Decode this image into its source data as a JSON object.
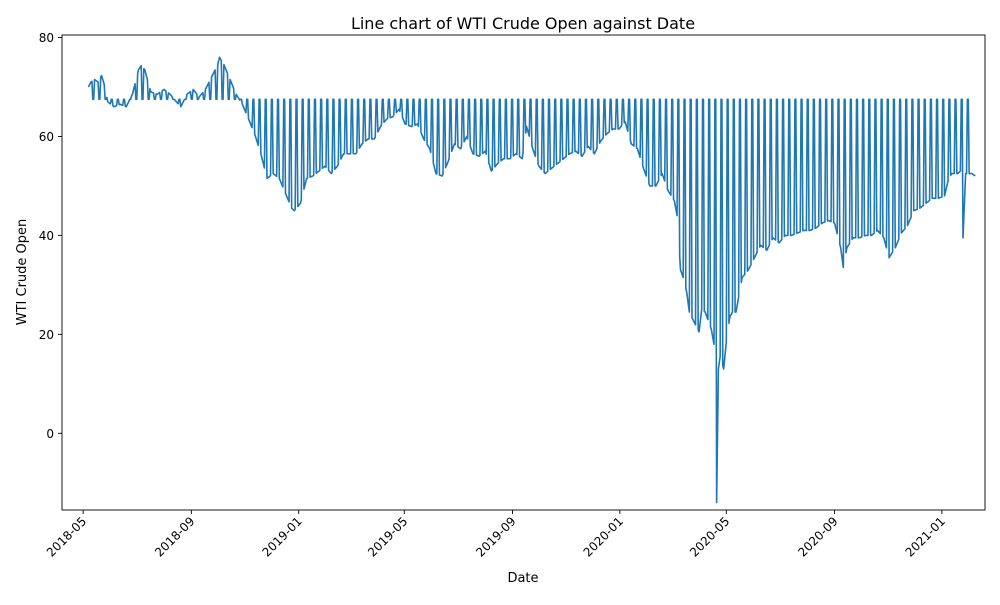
{
  "chart_data": {
    "type": "line",
    "title": "Line chart of WTI Crude Open against Date",
    "xlabel": "Date",
    "ylabel": "WTI Crude Open",
    "ylim": [
      -15.5,
      80.5
    ],
    "xlim": [
      "2018-04-07",
      "2021-02-19"
    ],
    "grid": false,
    "line_color": "#1f77b4",
    "x_ticks": [
      "2018-05-01",
      "2018-09-01",
      "2019-01-01",
      "2019-05-01",
      "2019-09-01",
      "2020-01-01",
      "2020-05-01",
      "2020-09-01",
      "2021-01-01"
    ],
    "x_tick_labels": [
      "2018-05",
      "2018-09",
      "2019-01",
      "2019-05",
      "2019-09",
      "2020-01",
      "2020-05",
      "2020-09",
      "2021-01"
    ],
    "y_ticks": [
      0,
      20,
      40,
      60,
      80
    ],
    "y_tick_labels": [
      "0",
      "20",
      "40",
      "60",
      "80"
    ],
    "filler_value": 67.5,
    "series_anchors": [
      [
        "2018-05-07",
        70.0
      ],
      [
        "2018-05-10",
        71.0
      ],
      [
        "2018-05-14",
        71.5
      ],
      [
        "2018-05-18",
        71.0
      ],
      [
        "2018-05-22",
        72.3
      ],
      [
        "2018-05-25",
        70.5
      ],
      [
        "2018-05-29",
        67.0
      ],
      [
        "2018-06-05",
        66.0
      ],
      [
        "2018-06-12",
        66.5
      ],
      [
        "2018-06-19",
        66.0
      ],
      [
        "2018-06-26",
        68.5
      ],
      [
        "2018-07-03",
        73.5
      ],
      [
        "2018-07-06",
        74.3
      ],
      [
        "2018-07-10",
        73.5
      ],
      [
        "2018-07-17",
        69.0
      ],
      [
        "2018-07-24",
        68.5
      ],
      [
        "2018-08-01",
        69.5
      ],
      [
        "2018-08-08",
        68.5
      ],
      [
        "2018-08-15",
        67.0
      ],
      [
        "2018-08-20",
        66.0
      ],
      [
        "2018-08-27",
        68.5
      ],
      [
        "2018-09-03",
        69.5
      ],
      [
        "2018-09-10",
        68.0
      ],
      [
        "2018-09-17",
        69.5
      ],
      [
        "2018-09-24",
        72.0
      ],
      [
        "2018-10-01",
        74.5
      ],
      [
        "2018-10-03",
        76.0
      ],
      [
        "2018-10-08",
        74.5
      ],
      [
        "2018-10-15",
        71.5
      ],
      [
        "2018-10-22",
        68.5
      ],
      [
        "2018-10-29",
        66.5
      ],
      [
        "2018-11-05",
        63.5
      ],
      [
        "2018-11-12",
        60.5
      ],
      [
        "2018-11-19",
        56.5
      ],
      [
        "2018-11-26",
        51.5
      ],
      [
        "2018-12-03",
        52.5
      ],
      [
        "2018-12-10",
        51.5
      ],
      [
        "2018-12-17",
        48.5
      ],
      [
        "2018-12-24",
        45.5
      ],
      [
        "2018-12-27",
        45.0
      ],
      [
        "2019-01-03",
        46.5
      ],
      [
        "2019-01-10",
        51.5
      ],
      [
        "2019-01-17",
        52.0
      ],
      [
        "2019-01-24",
        53.0
      ],
      [
        "2019-01-31",
        54.0
      ],
      [
        "2019-02-07",
        52.5
      ],
      [
        "2019-02-14",
        54.0
      ],
      [
        "2019-02-21",
        56.5
      ],
      [
        "2019-02-28",
        56.5
      ],
      [
        "2019-03-07",
        56.5
      ],
      [
        "2019-03-14",
        58.5
      ],
      [
        "2019-03-21",
        59.5
      ],
      [
        "2019-03-28",
        59.5
      ],
      [
        "2019-04-04",
        62.0
      ],
      [
        "2019-04-11",
        63.5
      ],
      [
        "2019-04-18",
        64.0
      ],
      [
        "2019-04-25",
        65.5
      ],
      [
        "2019-05-02",
        62.5
      ],
      [
        "2019-05-09",
        62.0
      ],
      [
        "2019-05-16",
        62.5
      ],
      [
        "2019-05-23",
        59.5
      ],
      [
        "2019-05-30",
        57.5
      ],
      [
        "2019-06-06",
        52.5
      ],
      [
        "2019-06-13",
        52.0
      ],
      [
        "2019-06-20",
        55.0
      ],
      [
        "2019-06-27",
        58.5
      ],
      [
        "2019-07-04",
        57.5
      ],
      [
        "2019-07-11",
        60.0
      ],
      [
        "2019-07-18",
        56.5
      ],
      [
        "2019-07-25",
        56.0
      ],
      [
        "2019-08-01",
        57.0
      ],
      [
        "2019-08-08",
        53.0
      ],
      [
        "2019-08-15",
        54.5
      ],
      [
        "2019-08-22",
        55.5
      ],
      [
        "2019-08-29",
        55.5
      ],
      [
        "2019-09-05",
        56.5
      ],
      [
        "2019-09-12",
        55.5
      ],
      [
        "2019-09-17",
        62.0
      ],
      [
        "2019-09-24",
        57.5
      ],
      [
        "2019-10-01",
        54.0
      ],
      [
        "2019-10-08",
        52.5
      ],
      [
        "2019-10-15",
        53.5
      ],
      [
        "2019-10-22",
        54.5
      ],
      [
        "2019-10-29",
        55.5
      ],
      [
        "2019-11-05",
        56.5
      ],
      [
        "2019-11-12",
        57.0
      ],
      [
        "2019-11-19",
        56.0
      ],
      [
        "2019-11-26",
        58.0
      ],
      [
        "2019-12-03",
        56.5
      ],
      [
        "2019-12-10",
        59.0
      ],
      [
        "2019-12-17",
        60.5
      ],
      [
        "2019-12-24",
        61.5
      ],
      [
        "2019-12-31",
        61.5
      ],
      [
        "2020-01-07",
        63.0
      ],
      [
        "2020-01-14",
        58.5
      ],
      [
        "2020-01-21",
        57.5
      ],
      [
        "2020-01-28",
        53.5
      ],
      [
        "2020-02-04",
        50.0
      ],
      [
        "2020-02-11",
        50.0
      ],
      [
        "2020-02-18",
        52.5
      ],
      [
        "2020-02-25",
        49.0
      ],
      [
        "2020-03-03",
        47.0
      ],
      [
        "2020-03-06",
        44.0
      ],
      [
        "2020-03-10",
        33.0
      ],
      [
        "2020-03-13",
        31.5
      ],
      [
        "2020-03-17",
        28.5
      ],
      [
        "2020-03-20",
        24.5
      ],
      [
        "2020-03-24",
        23.0
      ],
      [
        "2020-03-31",
        20.5
      ],
      [
        "2020-04-03",
        25.0
      ],
      [
        "2020-04-07",
        24.5
      ],
      [
        "2020-04-14",
        21.0
      ],
      [
        "2020-04-17",
        18.0
      ],
      [
        "2020-04-20",
        -14.0
      ],
      [
        "2020-04-22",
        13.0
      ],
      [
        "2020-04-24",
        15.5
      ],
      [
        "2020-04-28",
        13.0
      ],
      [
        "2020-05-01",
        18.5
      ],
      [
        "2020-05-05",
        23.5
      ],
      [
        "2020-05-08",
        24.5
      ],
      [
        "2020-05-12",
        24.5
      ],
      [
        "2020-05-19",
        31.5
      ],
      [
        "2020-05-26",
        33.0
      ],
      [
        "2020-06-02",
        35.5
      ],
      [
        "2020-06-09",
        38.0
      ],
      [
        "2020-06-16",
        37.0
      ],
      [
        "2020-06-23",
        39.5
      ],
      [
        "2020-06-30",
        38.5
      ],
      [
        "2020-07-07",
        40.0
      ],
      [
        "2020-07-14",
        40.0
      ],
      [
        "2020-07-21",
        40.5
      ],
      [
        "2020-07-28",
        41.0
      ],
      [
        "2020-08-04",
        41.0
      ],
      [
        "2020-08-11",
        41.5
      ],
      [
        "2020-08-18",
        42.5
      ],
      [
        "2020-08-25",
        43.0
      ],
      [
        "2020-09-01",
        42.5
      ],
      [
        "2020-09-08",
        37.5
      ],
      [
        "2020-09-11",
        33.5
      ],
      [
        "2020-09-15",
        37.5
      ],
      [
        "2020-09-22",
        39.5
      ],
      [
        "2020-09-29",
        39.5
      ],
      [
        "2020-10-06",
        40.0
      ],
      [
        "2020-10-13",
        40.0
      ],
      [
        "2020-10-20",
        41.0
      ],
      [
        "2020-10-27",
        39.5
      ],
      [
        "2020-11-02",
        35.5
      ],
      [
        "2020-11-09",
        37.5
      ],
      [
        "2020-11-16",
        40.5
      ],
      [
        "2020-11-23",
        42.0
      ],
      [
        "2020-11-30",
        45.0
      ],
      [
        "2020-12-07",
        45.5
      ],
      [
        "2020-12-14",
        46.5
      ],
      [
        "2020-12-21",
        47.5
      ],
      [
        "2020-12-28",
        47.5
      ],
      [
        "2021-01-04",
        48.0
      ],
      [
        "2021-01-08",
        51.0
      ],
      [
        "2021-01-12",
        52.5
      ],
      [
        "2021-01-19",
        52.5
      ],
      [
        "2021-01-22",
        53.0
      ],
      [
        "2021-01-25",
        39.5
      ],
      [
        "2021-01-28",
        52.5
      ],
      [
        "2021-02-04",
        52.5
      ],
      [
        "2021-02-08",
        52.0
      ]
    ]
  }
}
